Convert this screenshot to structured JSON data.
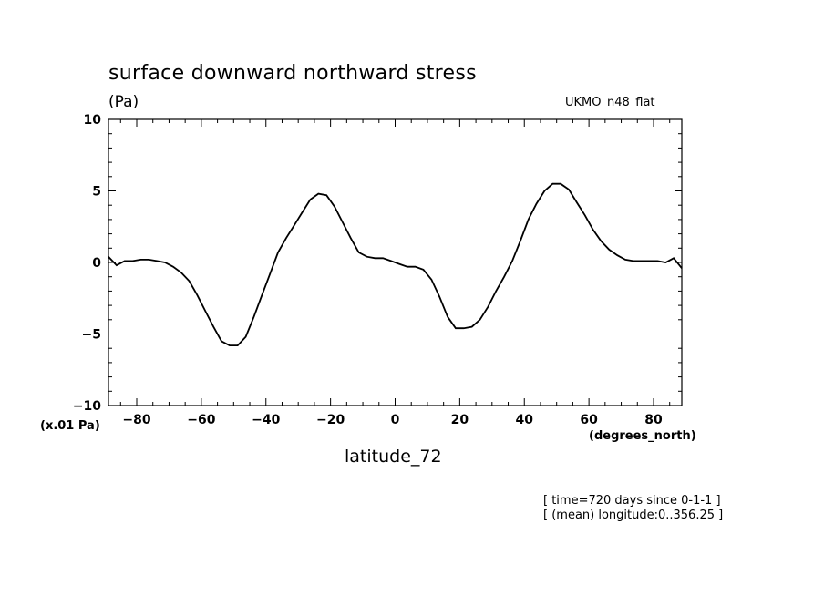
{
  "chart_data": {
    "type": "line",
    "title": "surface downward northward stress",
    "units_label": "(Pa)",
    "model_label": "UKMO_n48_flat",
    "scale_label": "(x.01 Pa)",
    "xlabel": "latitude_72",
    "xunits_label": "(degrees_north)",
    "xlim": [
      -88.75,
      88.75
    ],
    "ylim": [
      -10,
      10
    ],
    "xticks": [
      -80,
      -60,
      -40,
      -20,
      0,
      20,
      40,
      60,
      80
    ],
    "xtick_labels": [
      "−80",
      "−60",
      "−40",
      "−20",
      "0",
      "20",
      "40",
      "60",
      "80"
    ],
    "yticks": [
      -10,
      -5,
      0,
      5,
      10
    ],
    "ytick_labels": [
      "−10",
      "−5",
      "0",
      "5",
      "10"
    ],
    "grid": false,
    "line_color": "#000000",
    "series": [
      {
        "x": [
          -88.75,
          -86.25,
          -83.75,
          -81.25,
          -78.75,
          -76.25,
          -73.75,
          -71.25,
          -68.75,
          -66.25,
          -63.75,
          -61.25,
          -58.75,
          -56.25,
          -53.75,
          -51.25,
          -48.75,
          -46.25,
          -43.75,
          -41.25,
          -38.75,
          -36.25,
          -33.75,
          -31.25,
          -28.75,
          -26.25,
          -23.75,
          -21.25,
          -18.75,
          -16.25,
          -13.75,
          -11.25,
          -8.75,
          -6.25,
          -3.75,
          -1.25,
          1.25,
          3.75,
          6.25,
          8.75,
          11.25,
          13.75,
          16.25,
          18.75,
          21.25,
          23.75,
          26.25,
          28.75,
          31.25,
          33.75,
          36.25,
          38.75,
          41.25,
          43.75,
          46.25,
          48.75,
          51.25,
          53.75,
          56.25,
          58.75,
          61.25,
          63.75,
          66.25,
          68.75,
          71.25,
          73.75,
          76.25,
          78.75,
          81.25,
          83.75,
          86.25,
          88.75
        ],
        "y": [
          0.4,
          -0.2,
          0.1,
          0.1,
          0.2,
          0.2,
          0.1,
          0.0,
          -0.3,
          -0.7,
          -1.3,
          -2.3,
          -3.4,
          -4.5,
          -5.5,
          -5.8,
          -5.8,
          -5.2,
          -3.8,
          -2.3,
          -0.8,
          0.7,
          1.7,
          2.6,
          3.5,
          4.4,
          4.8,
          4.7,
          3.9,
          2.8,
          1.7,
          0.7,
          0.4,
          0.3,
          0.3,
          0.1,
          -0.1,
          -0.3,
          -0.3,
          -0.5,
          -1.2,
          -2.4,
          -3.8,
          -4.6,
          -4.6,
          -4.5,
          -4.0,
          -3.1,
          -2.0,
          -1.0,
          0.1,
          1.5,
          3.0,
          4.1,
          5.0,
          5.5,
          5.5,
          5.1,
          4.2,
          3.3,
          2.3,
          1.5,
          0.9,
          0.5,
          0.2,
          0.1,
          0.1,
          0.1,
          0.1,
          0.0,
          0.3,
          -0.4
        ]
      }
    ]
  },
  "notes": {
    "line1": "[ time=720 days since 0-1-1 ]",
    "line2": "[ (mean) longitude:0..356.25 ]"
  }
}
